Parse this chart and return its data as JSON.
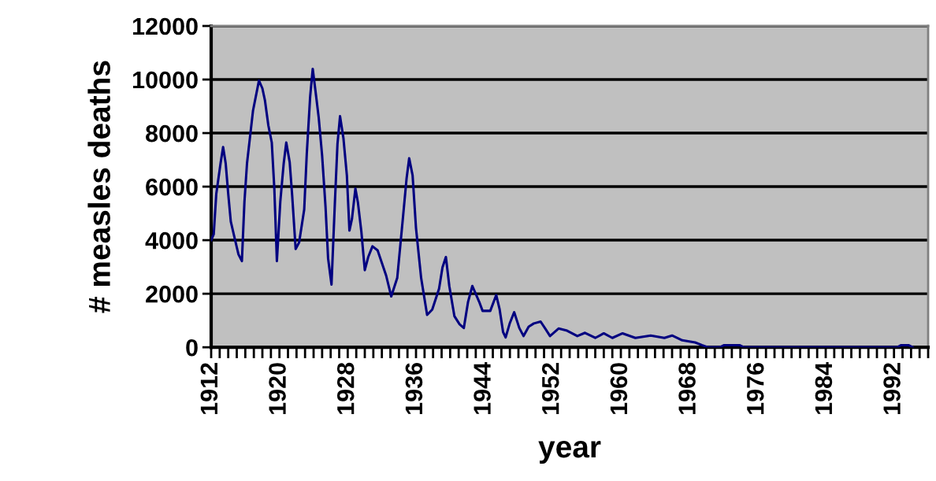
{
  "chart_data": {
    "type": "line",
    "xlabel": "year",
    "ylabel": "# measles deaths",
    "x": [
      1912.0,
      1912.3,
      1912.6,
      1913.1,
      1913.4,
      1913.7,
      1914.0,
      1914.3,
      1914.8,
      1915.2,
      1915.6,
      1915.9,
      1916.2,
      1916.6,
      1916.9,
      1917.6,
      1918.0,
      1918.3,
      1918.7,
      1919.1,
      1919.4,
      1919.7,
      1920.1,
      1920.5,
      1920.8,
      1921.2,
      1921.5,
      1921.9,
      1922.3,
      1922.9,
      1923.2,
      1923.6,
      1923.9,
      1924.3,
      1924.6,
      1925.0,
      1925.4,
      1925.7,
      1926.1,
      1926.5,
      1926.8,
      1927.1,
      1927.5,
      1927.9,
      1928.2,
      1928.5,
      1928.9,
      1929.2,
      1929.6,
      1930.0,
      1930.4,
      1930.9,
      1931.5,
      1932.5,
      1933.1,
      1933.8,
      1934.5,
      1934.9,
      1935.2,
      1935.6,
      1936.0,
      1936.6,
      1937.3,
      1937.9,
      1938.7,
      1939.1,
      1939.5,
      1939.9,
      1940.5,
      1941.1,
      1941.6,
      1942.1,
      1942.6,
      1943.4,
      1943.8,
      1944.7,
      1945.4,
      1945.8,
      1946.2,
      1946.5,
      1947.0,
      1947.5,
      1948.1,
      1948.6,
      1949.2,
      1949.8,
      1950.6,
      1951.2,
      1951.7,
      1952.7,
      1953.7,
      1954.9,
      1955.8,
      1957.0,
      1958.0,
      1959.0,
      1960.2,
      1961.7,
      1963.5,
      1965.1,
      1966.0,
      1967.2,
      1968.7,
      1969.5,
      1970.2,
      1971.6,
      1972.1,
      1973.9,
      1974.4,
      1992.4,
      1992.8,
      1993.7,
      1994.2
    ],
    "values": [
      4000,
      4220,
      5730,
      6870,
      7480,
      6870,
      5730,
      4700,
      4010,
      3470,
      3220,
      5440,
      6870,
      7990,
      8830,
      9960,
      9670,
      9220,
      8290,
      7650,
      5930,
      3220,
      5440,
      6870,
      7650,
      6910,
      5630,
      3670,
      3910,
      5140,
      7210,
      9370,
      10400,
      9370,
      8580,
      7160,
      5240,
      3320,
      2340,
      5440,
      7600,
      8630,
      7800,
      6420,
      4360,
      4800,
      5930,
      5390,
      4310,
      2880,
      3370,
      3770,
      3620,
      2680,
      1900,
      2590,
      4950,
      6320,
      7060,
      6420,
      4450,
      2590,
      1210,
      1410,
      2190,
      2980,
      3370,
      2290,
      1160,
      860,
      720,
      1700,
      2290,
      1700,
      1360,
      1360,
      1950,
      1410,
      570,
      370,
      910,
      1310,
      720,
      420,
      770,
      890,
      960,
      670,
      420,
      700,
      620,
      420,
      540,
      350,
      520,
      350,
      520,
      350,
      440,
      350,
      440,
      260,
      180,
      80,
      0,
      0,
      80,
      80,
      0,
      0,
      80,
      80,
      0
    ],
    "color": "#000080",
    "xlim": [
      1912,
      1996
    ],
    "xticks": [
      1912,
      {
        "value": 1913,
        "label": null
      },
      {
        "value": 1914,
        "label": null
      },
      {
        "value": 1915,
        "label": null
      },
      {
        "value": 1916,
        "label": null
      },
      {
        "value": 1917,
        "label": null
      },
      {
        "value": 1918,
        "label": null
      },
      {
        "value": 1919,
        "label": null
      },
      1920,
      {
        "value": 1921,
        "label": null
      },
      {
        "value": 1922,
        "label": null
      },
      {
        "value": 1923,
        "label": null
      },
      {
        "value": 1924,
        "label": null
      },
      {
        "value": 1925,
        "label": null
      },
      {
        "value": 1926,
        "label": null
      },
      {
        "value": 1927,
        "label": null
      },
      1928,
      {
        "value": 1929,
        "label": null
      },
      {
        "value": 1930,
        "label": null
      },
      {
        "value": 1931,
        "label": null
      },
      {
        "value": 1932,
        "label": null
      },
      {
        "value": 1933,
        "label": null
      },
      {
        "value": 1934,
        "label": null
      },
      {
        "value": 1935,
        "label": null
      },
      1936,
      {
        "value": 1937,
        "label": null
      },
      {
        "value": 1938,
        "label": null
      },
      {
        "value": 1939,
        "label": null
      },
      {
        "value": 1940,
        "label": null
      },
      {
        "value": 1941,
        "label": null
      },
      {
        "value": 1942,
        "label": null
      },
      {
        "value": 1943,
        "label": null
      },
      1944,
      {
        "value": 1945,
        "label": null
      },
      {
        "value": 1946,
        "label": null
      },
      {
        "value": 1947,
        "label": null
      },
      {
        "value": 1948,
        "label": null
      },
      {
        "value": 1949,
        "label": null
      },
      {
        "value": 1950,
        "label": null
      },
      {
        "value": 1951,
        "label": null
      },
      1952,
      {
        "value": 1953,
        "label": null
      },
      {
        "value": 1954,
        "label": null
      },
      {
        "value": 1955,
        "label": null
      },
      {
        "value": 1956,
        "label": null
      },
      {
        "value": 1957,
        "label": null
      },
      {
        "value": 1958,
        "label": null
      },
      {
        "value": 1959,
        "label": null
      },
      1960,
      {
        "value": 1961,
        "label": null
      },
      {
        "value": 1962,
        "label": null
      },
      {
        "value": 1963,
        "label": null
      },
      {
        "value": 1964,
        "label": null
      },
      {
        "value": 1965,
        "label": null
      },
      {
        "value": 1966,
        "label": null
      },
      {
        "value": 1967,
        "label": null
      },
      1968,
      {
        "value": 1969,
        "label": null
      },
      {
        "value": 1970,
        "label": null
      },
      {
        "value": 1971,
        "label": null
      },
      {
        "value": 1972,
        "label": null
      },
      {
        "value": 1973,
        "label": null
      },
      {
        "value": 1974,
        "label": null
      },
      {
        "value": 1975,
        "label": null
      },
      1976,
      {
        "value": 1977,
        "label": null
      },
      {
        "value": 1978,
        "label": null
      },
      {
        "value": 1979,
        "label": null
      },
      {
        "value": 1980,
        "label": null
      },
      {
        "value": 1981,
        "label": null
      },
      {
        "value": 1982,
        "label": null
      },
      {
        "value": 1983,
        "label": null
      },
      1984,
      {
        "value": 1985,
        "label": null
      },
      {
        "value": 1986,
        "label": null
      },
      {
        "value": 1987,
        "label": null
      },
      {
        "value": 1988,
        "label": null
      },
      {
        "value": 1989,
        "label": null
      },
      {
        "value": 1990,
        "label": null
      },
      {
        "value": 1991,
        "label": null
      },
      1992,
      {
        "value": 1993,
        "label": null
      },
      {
        "value": 1994,
        "label": null
      },
      {
        "value": 1995,
        "label": null
      },
      {
        "value": 1996,
        "label": null
      }
    ],
    "ylim": [
      0,
      12000
    ],
    "yticks": [
      0,
      2000,
      4000,
      6000,
      8000,
      10000,
      12000
    ],
    "grid": "y",
    "marker": "none",
    "line_style": "solid"
  }
}
